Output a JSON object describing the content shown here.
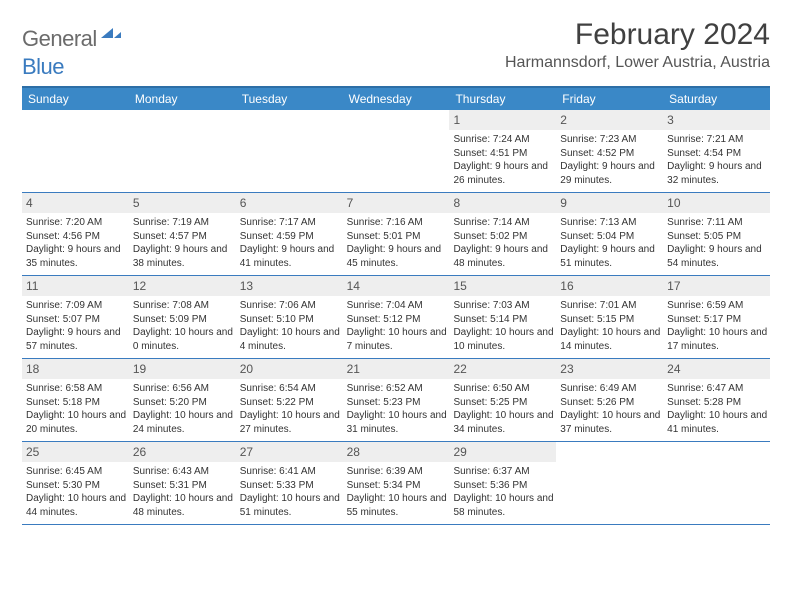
{
  "brand": {
    "part1": "General",
    "part2": "Blue",
    "logo_color": "#3a7bbf"
  },
  "title": "February 2024",
  "location": "Harmannsdorf, Lower Austria, Austria",
  "colors": {
    "header_bg": "#3a88c7",
    "header_border": "#2d6ea6",
    "row_border": "#3a7bbf",
    "daynum_bg": "#eeeeee",
    "text": "#333333"
  },
  "dow": [
    "Sunday",
    "Monday",
    "Tuesday",
    "Wednesday",
    "Thursday",
    "Friday",
    "Saturday"
  ],
  "weeks": [
    [
      {
        "n": "",
        "sr": "",
        "ss": "",
        "dl": ""
      },
      {
        "n": "",
        "sr": "",
        "ss": "",
        "dl": ""
      },
      {
        "n": "",
        "sr": "",
        "ss": "",
        "dl": ""
      },
      {
        "n": "",
        "sr": "",
        "ss": "",
        "dl": ""
      },
      {
        "n": "1",
        "sr": "Sunrise: 7:24 AM",
        "ss": "Sunset: 4:51 PM",
        "dl": "Daylight: 9 hours and 26 minutes."
      },
      {
        "n": "2",
        "sr": "Sunrise: 7:23 AM",
        "ss": "Sunset: 4:52 PM",
        "dl": "Daylight: 9 hours and 29 minutes."
      },
      {
        "n": "3",
        "sr": "Sunrise: 7:21 AM",
        "ss": "Sunset: 4:54 PM",
        "dl": "Daylight: 9 hours and 32 minutes."
      }
    ],
    [
      {
        "n": "4",
        "sr": "Sunrise: 7:20 AM",
        "ss": "Sunset: 4:56 PM",
        "dl": "Daylight: 9 hours and 35 minutes."
      },
      {
        "n": "5",
        "sr": "Sunrise: 7:19 AM",
        "ss": "Sunset: 4:57 PM",
        "dl": "Daylight: 9 hours and 38 minutes."
      },
      {
        "n": "6",
        "sr": "Sunrise: 7:17 AM",
        "ss": "Sunset: 4:59 PM",
        "dl": "Daylight: 9 hours and 41 minutes."
      },
      {
        "n": "7",
        "sr": "Sunrise: 7:16 AM",
        "ss": "Sunset: 5:01 PM",
        "dl": "Daylight: 9 hours and 45 minutes."
      },
      {
        "n": "8",
        "sr": "Sunrise: 7:14 AM",
        "ss": "Sunset: 5:02 PM",
        "dl": "Daylight: 9 hours and 48 minutes."
      },
      {
        "n": "9",
        "sr": "Sunrise: 7:13 AM",
        "ss": "Sunset: 5:04 PM",
        "dl": "Daylight: 9 hours and 51 minutes."
      },
      {
        "n": "10",
        "sr": "Sunrise: 7:11 AM",
        "ss": "Sunset: 5:05 PM",
        "dl": "Daylight: 9 hours and 54 minutes."
      }
    ],
    [
      {
        "n": "11",
        "sr": "Sunrise: 7:09 AM",
        "ss": "Sunset: 5:07 PM",
        "dl": "Daylight: 9 hours and 57 minutes."
      },
      {
        "n": "12",
        "sr": "Sunrise: 7:08 AM",
        "ss": "Sunset: 5:09 PM",
        "dl": "Daylight: 10 hours and 0 minutes."
      },
      {
        "n": "13",
        "sr": "Sunrise: 7:06 AM",
        "ss": "Sunset: 5:10 PM",
        "dl": "Daylight: 10 hours and 4 minutes."
      },
      {
        "n": "14",
        "sr": "Sunrise: 7:04 AM",
        "ss": "Sunset: 5:12 PM",
        "dl": "Daylight: 10 hours and 7 minutes."
      },
      {
        "n": "15",
        "sr": "Sunrise: 7:03 AM",
        "ss": "Sunset: 5:14 PM",
        "dl": "Daylight: 10 hours and 10 minutes."
      },
      {
        "n": "16",
        "sr": "Sunrise: 7:01 AM",
        "ss": "Sunset: 5:15 PM",
        "dl": "Daylight: 10 hours and 14 minutes."
      },
      {
        "n": "17",
        "sr": "Sunrise: 6:59 AM",
        "ss": "Sunset: 5:17 PM",
        "dl": "Daylight: 10 hours and 17 minutes."
      }
    ],
    [
      {
        "n": "18",
        "sr": "Sunrise: 6:58 AM",
        "ss": "Sunset: 5:18 PM",
        "dl": "Daylight: 10 hours and 20 minutes."
      },
      {
        "n": "19",
        "sr": "Sunrise: 6:56 AM",
        "ss": "Sunset: 5:20 PM",
        "dl": "Daylight: 10 hours and 24 minutes."
      },
      {
        "n": "20",
        "sr": "Sunrise: 6:54 AM",
        "ss": "Sunset: 5:22 PM",
        "dl": "Daylight: 10 hours and 27 minutes."
      },
      {
        "n": "21",
        "sr": "Sunrise: 6:52 AM",
        "ss": "Sunset: 5:23 PM",
        "dl": "Daylight: 10 hours and 31 minutes."
      },
      {
        "n": "22",
        "sr": "Sunrise: 6:50 AM",
        "ss": "Sunset: 5:25 PM",
        "dl": "Daylight: 10 hours and 34 minutes."
      },
      {
        "n": "23",
        "sr": "Sunrise: 6:49 AM",
        "ss": "Sunset: 5:26 PM",
        "dl": "Daylight: 10 hours and 37 minutes."
      },
      {
        "n": "24",
        "sr": "Sunrise: 6:47 AM",
        "ss": "Sunset: 5:28 PM",
        "dl": "Daylight: 10 hours and 41 minutes."
      }
    ],
    [
      {
        "n": "25",
        "sr": "Sunrise: 6:45 AM",
        "ss": "Sunset: 5:30 PM",
        "dl": "Daylight: 10 hours and 44 minutes."
      },
      {
        "n": "26",
        "sr": "Sunrise: 6:43 AM",
        "ss": "Sunset: 5:31 PM",
        "dl": "Daylight: 10 hours and 48 minutes."
      },
      {
        "n": "27",
        "sr": "Sunrise: 6:41 AM",
        "ss": "Sunset: 5:33 PM",
        "dl": "Daylight: 10 hours and 51 minutes."
      },
      {
        "n": "28",
        "sr": "Sunrise: 6:39 AM",
        "ss": "Sunset: 5:34 PM",
        "dl": "Daylight: 10 hours and 55 minutes."
      },
      {
        "n": "29",
        "sr": "Sunrise: 6:37 AM",
        "ss": "Sunset: 5:36 PM",
        "dl": "Daylight: 10 hours and 58 minutes."
      },
      {
        "n": "",
        "sr": "",
        "ss": "",
        "dl": ""
      },
      {
        "n": "",
        "sr": "",
        "ss": "",
        "dl": ""
      }
    ]
  ]
}
